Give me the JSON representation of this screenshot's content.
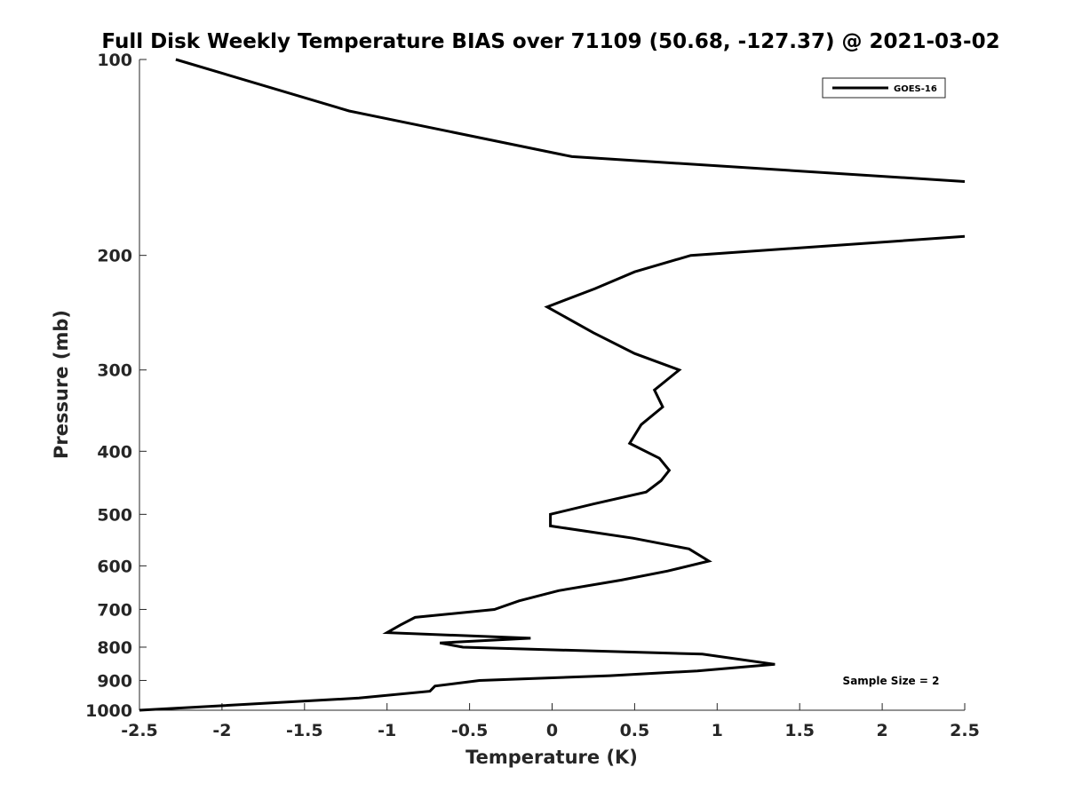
{
  "chart_data": {
    "type": "line",
    "title": "Full Disk Weekly Temperature BIAS over 71109 (50.68, -127.37) @ 2021-03-02",
    "xlabel": "Temperature (K)",
    "ylabel": "Pressure (mb)",
    "xlim": [
      -2.5,
      2.5
    ],
    "ylim": [
      100,
      1000
    ],
    "y_scale": "log",
    "y_reversed": true,
    "x_ticks": [
      "-2.5",
      "-2",
      "-1.5",
      "-1",
      "-0.5",
      "0",
      "0.5",
      "1",
      "1.5",
      "2",
      "2.5"
    ],
    "y_ticks": [
      "100",
      "200",
      "300",
      "400",
      "500",
      "600",
      "700",
      "800",
      "900",
      "1000"
    ],
    "grid": false,
    "legend_position": "top-right",
    "annotation": "Sample Size = 2",
    "series": [
      {
        "name": "GOES-16",
        "color": "#000000",
        "segments": [
          {
            "x": [
              -2.28,
              -1.23,
              0.12,
              2.5
            ],
            "y": [
              100,
              120,
              141,
              154
            ]
          },
          {
            "x": [
              2.5,
              0.84,
              0.5,
              0.26,
              -0.03,
              0.25,
              0.5,
              0.77,
              0.62,
              0.67,
              0.54,
              0.47,
              0.65,
              0.71,
              0.66,
              0.57,
              0.25,
              -0.01,
              -0.01,
              0.49,
              0.83,
              0.95,
              0.7,
              0.42,
              0.04,
              -0.2,
              -0.35,
              -0.83,
              -0.92,
              -1.0,
              -0.13,
              -0.68,
              -0.54,
              0.91,
              1.35,
              0.88,
              0.35,
              -0.44,
              -0.71,
              -0.74,
              -1.17,
              -2.5
            ],
            "y": [
              187,
              200,
              212,
              225,
              240,
              263,
              283,
              300,
              322,
              342,
              364,
              389,
              410,
              428,
              444,
              462,
              482,
              500,
              521,
              544,
              565,
              590,
              611,
              631,
              655,
              679,
              700,
              720,
              740,
              760,
              775,
              788,
              800,
              820,
              850,
              870,
              885,
              900,
              918,
              935,
              958,
              1000
            ]
          }
        ]
      }
    ]
  }
}
